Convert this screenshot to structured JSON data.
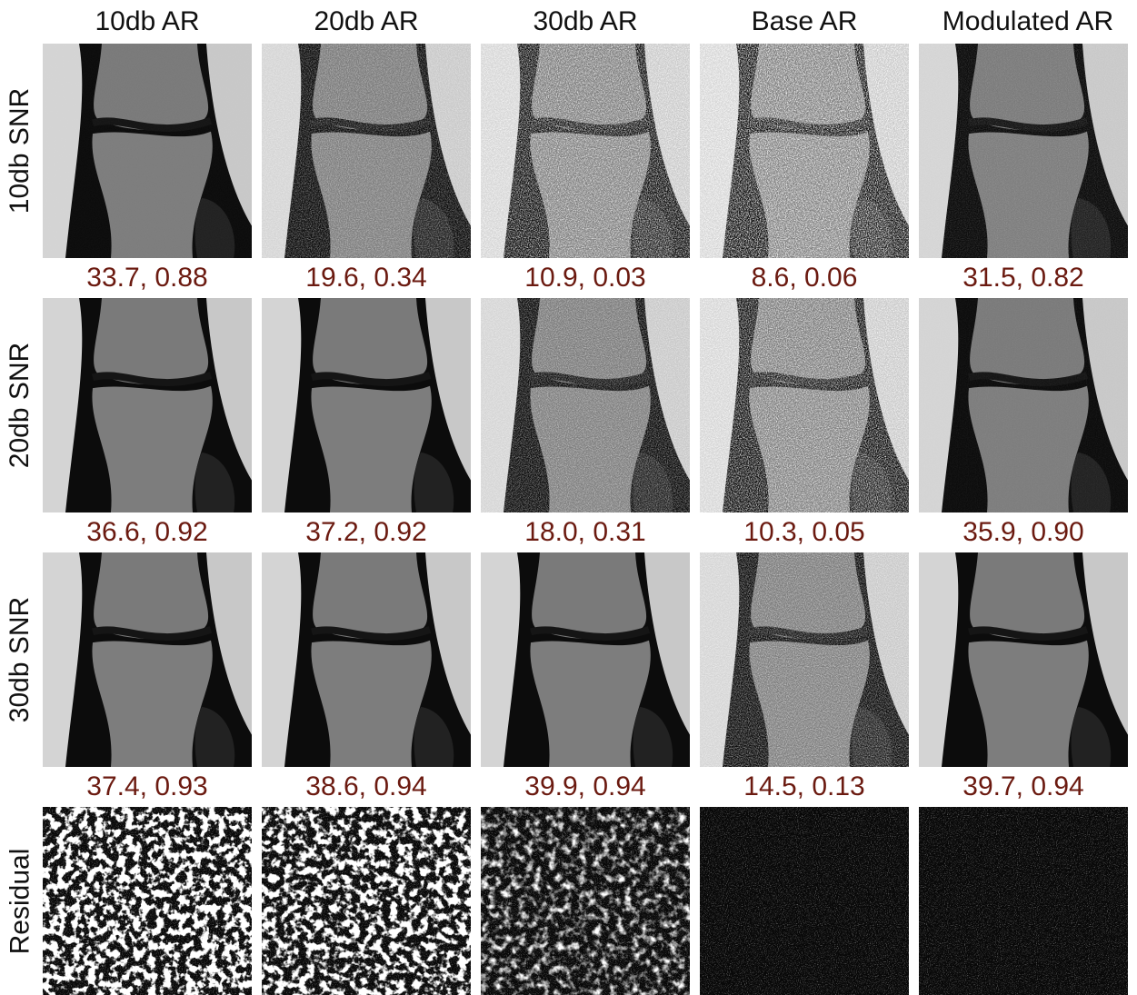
{
  "columns": [
    "10db AR",
    "20db AR",
    "30db AR",
    "Base AR",
    "Modulated AR"
  ],
  "rows": [
    {
      "label": "10db SNR",
      "metrics": [
        "33.7, 0.88",
        "19.6, 0.34",
        "10.9, 0.03",
        "8.6, 0.06",
        "31.5, 0.82"
      ],
      "noise": [
        0.02,
        0.45,
        0.85,
        1.0,
        0.15
      ]
    },
    {
      "label": "20db SNR",
      "metrics": [
        "36.6, 0.92",
        "37.2, 0.92",
        "18.0, 0.31",
        "10.3, 0.05",
        "35.9, 0.90"
      ],
      "noise": [
        0.0,
        0.0,
        0.5,
        0.85,
        0.05
      ]
    },
    {
      "label": "30db SNR",
      "metrics": [
        "37.4, 0.93",
        "38.6, 0.94",
        "39.9, 0.94",
        "14.5, 0.13",
        "39.7, 0.94"
      ],
      "noise": [
        0.0,
        0.0,
        0.0,
        0.55,
        0.0
      ]
    }
  ],
  "residual_row": {
    "label": "Residual",
    "intensity": [
      1.0,
      0.8,
      0.35,
      0.15,
      0.15
    ]
  },
  "colors": {
    "metric_text": "#6b1a10",
    "label_text": "#111111"
  }
}
